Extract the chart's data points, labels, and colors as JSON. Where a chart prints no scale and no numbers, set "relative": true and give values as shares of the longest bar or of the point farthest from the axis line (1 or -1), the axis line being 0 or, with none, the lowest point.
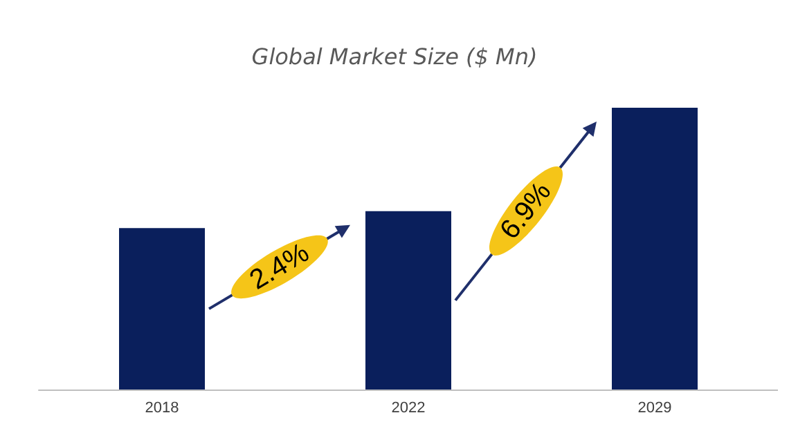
{
  "chart_data": {
    "type": "bar",
    "title": "Global Market Size ($ Mn)",
    "categories": [
      "2018",
      "2022",
      "2029"
    ],
    "values": [
      0.573,
      0.633,
      1
    ],
    "color": "#0a1f5c",
    "relative": true,
    "annotations": [
      "2.4%",
      "6.9%"
    ]
  }
}
